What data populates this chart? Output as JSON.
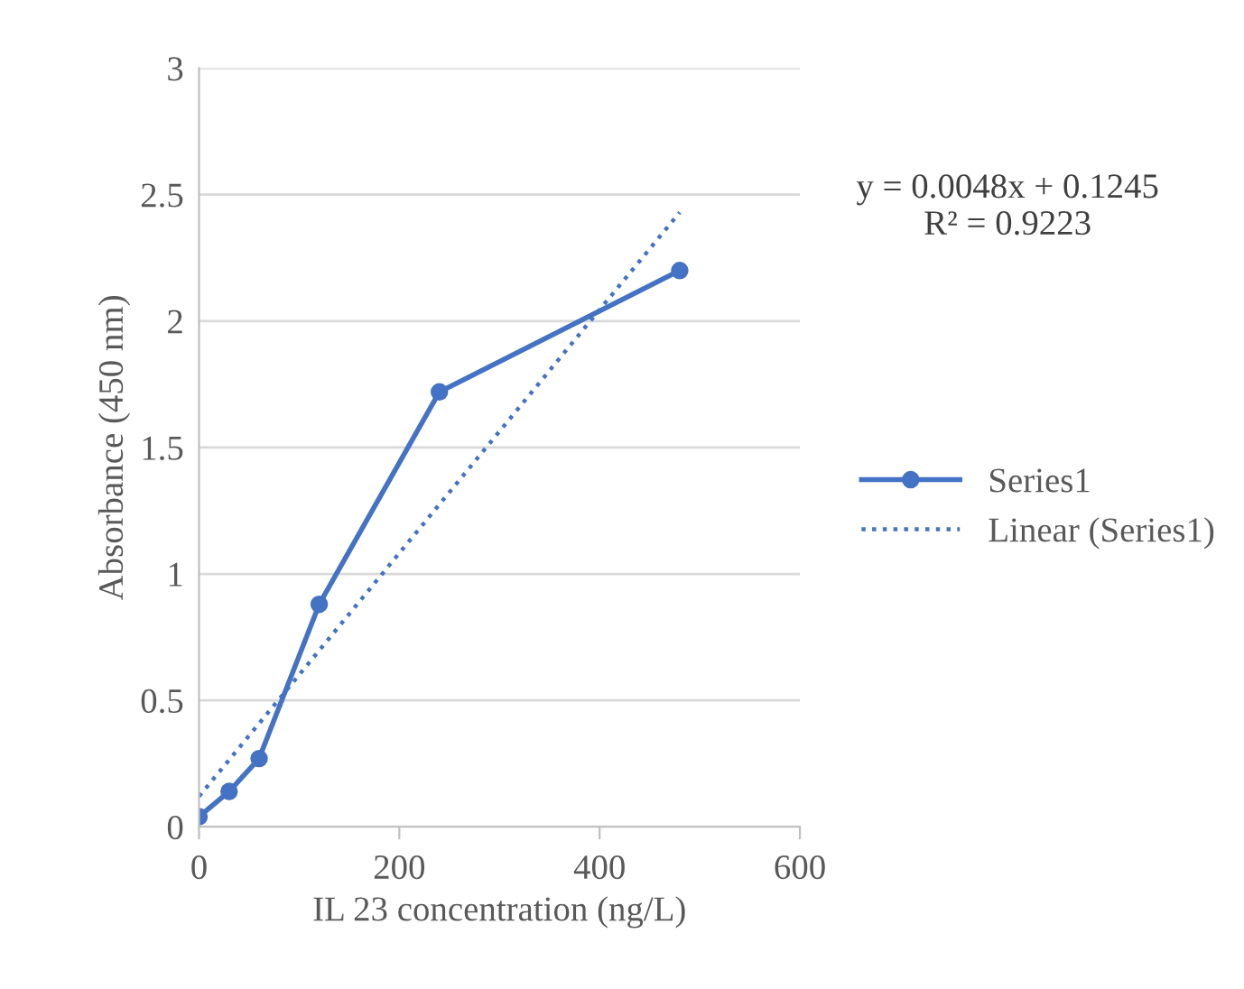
{
  "chart_data": {
    "type": "line",
    "xlabel": "IL 23 concentration (ng/L)",
    "ylabel": "Absorbance (450 nm)",
    "series": [
      {
        "name": "Series1",
        "color": "#4472c4",
        "x": [
          0,
          30,
          60,
          120,
          240,
          480
        ],
        "values": [
          0.04,
          0.14,
          0.27,
          0.88,
          1.72,
          2.2
        ],
        "marker": "circle",
        "line_style": "solid"
      },
      {
        "name": "Linear (Series1)",
        "color": "#4472c4",
        "x": [
          0,
          480
        ],
        "values": [
          0.12,
          2.43
        ],
        "marker": "none",
        "line_style": "dotted"
      }
    ],
    "xlim": [
      0,
      600
    ],
    "xticks": [
      0,
      200,
      400,
      600
    ],
    "ylim": [
      0,
      3
    ],
    "yticks": [
      0,
      0.5,
      1,
      1.5,
      2,
      2.5,
      3
    ],
    "grid": "y",
    "legend": "right",
    "annotations": [
      "y = 0.0048x + 0.1245\nR² = 0.9223"
    ]
  }
}
